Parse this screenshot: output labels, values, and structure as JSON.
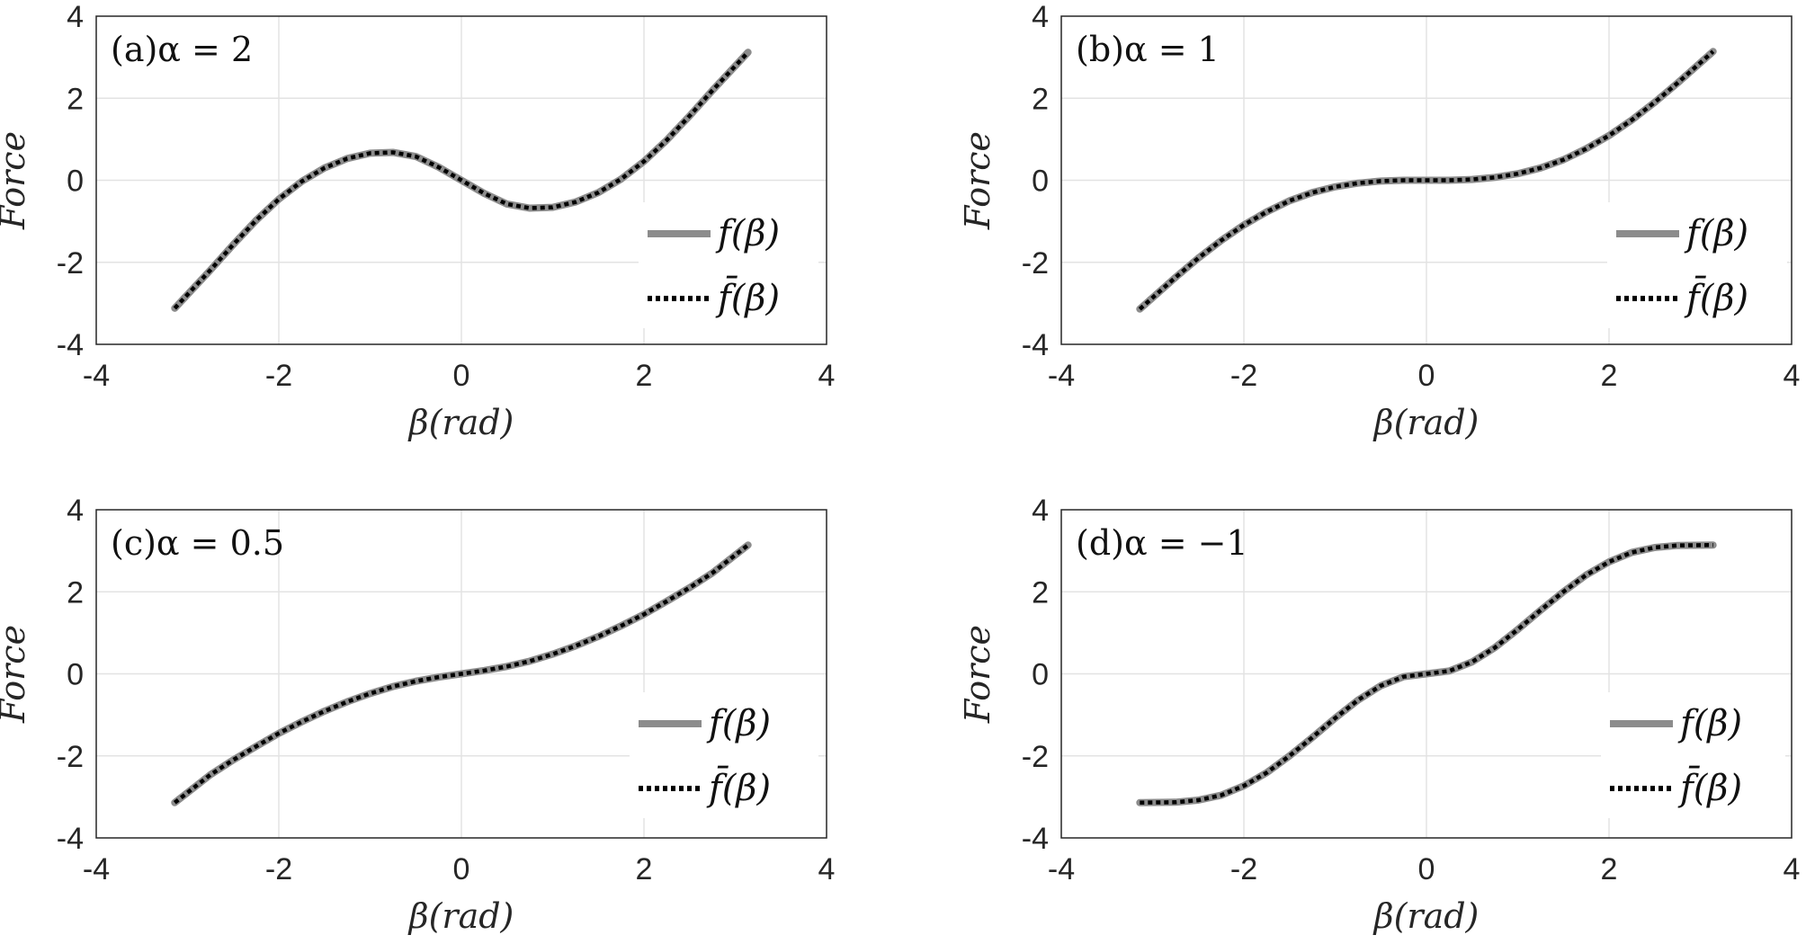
{
  "chart_data": [
    {
      "type": "line",
      "panel_label": "(a)α = 2",
      "alpha": 2,
      "xlabel": "β(rad)",
      "ylabel": "Force",
      "xlim": [
        -4,
        4
      ],
      "ylim": [
        -4,
        4
      ],
      "xticks": [
        "-4",
        "-2",
        "0",
        "2",
        "4"
      ],
      "yticks": [
        "-4",
        "-2",
        "0",
        "2",
        "4"
      ],
      "grid": true,
      "legend_position": "lower-right",
      "x": [
        -3.14,
        -2.75,
        -2.5,
        -2.25,
        -2.0,
        -1.75,
        -1.5,
        -1.25,
        -1.0,
        -0.75,
        -0.5,
        -0.25,
        0.0,
        0.25,
        0.5,
        0.75,
        1.0,
        1.25,
        1.5,
        1.75,
        2.0,
        2.25,
        2.5,
        2.75,
        3.14
      ],
      "series": [
        {
          "name": "f(β)",
          "color": "#8c8c8c",
          "style": "solid",
          "y": [
            -3.12,
            -2.19,
            -1.57,
            -0.98,
            -0.46,
            -0.03,
            0.3,
            0.53,
            0.66,
            0.68,
            0.58,
            0.32,
            0.0,
            -0.32,
            -0.58,
            -0.68,
            -0.66,
            -0.53,
            -0.3,
            0.03,
            0.46,
            0.98,
            1.57,
            2.19,
            3.12
          ]
        },
        {
          "name": "f̄(β)",
          "color": "#000000",
          "style": "dotted",
          "y": [
            -3.12,
            -2.19,
            -1.57,
            -0.98,
            -0.46,
            -0.03,
            0.3,
            0.53,
            0.66,
            0.68,
            0.58,
            0.32,
            0.0,
            -0.32,
            -0.58,
            -0.68,
            -0.66,
            -0.53,
            -0.3,
            0.03,
            0.46,
            0.98,
            1.57,
            2.19,
            3.12
          ]
        }
      ]
    },
    {
      "type": "line",
      "panel_label": "(b)α = 1",
      "alpha": 1,
      "xlabel": "β(rad)",
      "ylabel": "Force",
      "xlim": [
        -4,
        4
      ],
      "ylim": [
        -4,
        4
      ],
      "xticks": [
        "-4",
        "-2",
        "0",
        "2",
        "4"
      ],
      "yticks": [
        "-4",
        "-2",
        "0",
        "2",
        "4"
      ],
      "grid": true,
      "legend_position": "lower-right",
      "x": [
        -3.14,
        -2.75,
        -2.5,
        -2.25,
        -2.0,
        -1.75,
        -1.5,
        -1.25,
        -1.0,
        -0.75,
        -0.5,
        -0.25,
        0.0,
        0.25,
        0.5,
        0.75,
        1.0,
        1.25,
        1.5,
        1.75,
        2.0,
        2.25,
        2.5,
        2.75,
        3.14
      ],
      "series": [
        {
          "name": "f(β)",
          "color": "#8c8c8c",
          "style": "solid",
          "y": [
            -3.14,
            -2.37,
            -1.9,
            -1.47,
            -1.09,
            -0.77,
            -0.5,
            -0.3,
            -0.16,
            -0.07,
            -0.02,
            0.0,
            0.0,
            0.0,
            0.02,
            0.07,
            0.16,
            0.3,
            0.5,
            0.77,
            1.09,
            1.47,
            1.9,
            2.37,
            3.14
          ]
        },
        {
          "name": "f̄(β)",
          "color": "#000000",
          "style": "dotted",
          "y": [
            -3.14,
            -2.37,
            -1.9,
            -1.47,
            -1.09,
            -0.77,
            -0.5,
            -0.3,
            -0.16,
            -0.07,
            -0.02,
            0.0,
            0.0,
            0.0,
            0.02,
            0.07,
            0.16,
            0.3,
            0.5,
            0.77,
            1.09,
            1.47,
            1.9,
            2.37,
            3.14
          ]
        }
      ]
    },
    {
      "type": "line",
      "panel_label": "(c)α = 0.5",
      "alpha": 0.5,
      "xlabel": "β(rad)",
      "ylabel": "Force",
      "xlim": [
        -4,
        4
      ],
      "ylim": [
        -4,
        4
      ],
      "xticks": [
        "-4",
        "-2",
        "0",
        "2",
        "4"
      ],
      "yticks": [
        "-4",
        "-2",
        "0",
        "2",
        "4"
      ],
      "grid": true,
      "legend_position": "lower-right",
      "x": [
        -3.14,
        -2.75,
        -2.5,
        -2.25,
        -2.0,
        -1.75,
        -1.5,
        -1.25,
        -1.0,
        -0.75,
        -0.5,
        -0.25,
        0.0,
        0.25,
        0.5,
        0.75,
        1.0,
        1.25,
        1.5,
        1.75,
        2.0,
        2.25,
        2.5,
        2.75,
        3.14
      ],
      "series": [
        {
          "name": "f(β)",
          "color": "#8c8c8c",
          "style": "solid",
          "y": [
            -3.14,
            -2.46,
            -2.1,
            -1.77,
            -1.45,
            -1.17,
            -0.91,
            -0.68,
            -0.48,
            -0.31,
            -0.18,
            -0.08,
            0.0,
            0.08,
            0.18,
            0.31,
            0.48,
            0.68,
            0.91,
            1.17,
            1.45,
            1.77,
            2.1,
            2.46,
            3.14
          ]
        },
        {
          "name": "f̄(β)",
          "color": "#000000",
          "style": "dotted",
          "y": [
            -3.14,
            -2.46,
            -2.1,
            -1.77,
            -1.45,
            -1.17,
            -0.91,
            -0.68,
            -0.48,
            -0.31,
            -0.18,
            -0.08,
            0.0,
            0.08,
            0.18,
            0.31,
            0.48,
            0.68,
            0.91,
            1.17,
            1.45,
            1.77,
            2.1,
            2.46,
            3.14
          ]
        }
      ]
    },
    {
      "type": "line",
      "panel_label": "(d)α = −1",
      "alpha": -1,
      "xlabel": "β(rad)",
      "ylabel": "Force",
      "xlim": [
        -4,
        4
      ],
      "ylim": [
        -4,
        4
      ],
      "xticks": [
        "-4",
        "-2",
        "0",
        "2",
        "4"
      ],
      "yticks": [
        "-4",
        "-2",
        "0",
        "2",
        "4"
      ],
      "grid": true,
      "legend_position": "lower-right",
      "x": [
        -3.14,
        -2.75,
        -2.5,
        -2.25,
        -2.0,
        -1.75,
        -1.5,
        -1.25,
        -1.0,
        -0.75,
        -0.5,
        -0.25,
        0.0,
        0.25,
        0.5,
        0.75,
        1.0,
        1.25,
        1.5,
        1.75,
        2.0,
        2.25,
        2.5,
        2.75,
        3.14
      ],
      "series": [
        {
          "name": "f(β)",
          "color": "#8c8c8c",
          "style": "solid",
          "y": [
            -3.14,
            -3.13,
            -3.08,
            -2.96,
            -2.73,
            -2.41,
            -2.0,
            -1.55,
            -1.08,
            -0.64,
            -0.29,
            -0.07,
            0.0,
            0.07,
            0.29,
            0.64,
            1.08,
            1.55,
            2.0,
            2.41,
            2.73,
            2.96,
            3.08,
            3.13,
            3.14
          ]
        },
        {
          "name": "f̄(β)",
          "color": "#000000",
          "style": "dotted",
          "y": [
            -3.14,
            -3.13,
            -3.08,
            -2.96,
            -2.73,
            -2.41,
            -2.0,
            -1.55,
            -1.08,
            -0.64,
            -0.29,
            -0.07,
            0.0,
            0.07,
            0.29,
            0.64,
            1.08,
            1.55,
            2.0,
            2.41,
            2.73,
            2.96,
            3.08,
            3.13,
            3.14
          ]
        }
      ]
    }
  ]
}
